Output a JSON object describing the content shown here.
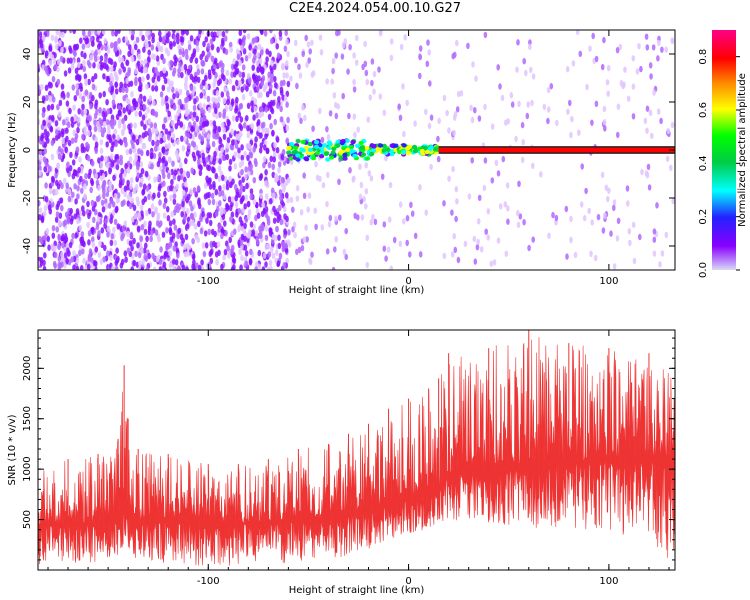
{
  "title": "C2E4.2024.054.00.10.G27",
  "colors": {
    "snr_fill": "#ee3333",
    "background": "#ffffff",
    "axis": "#000000"
  },
  "chart_data": [
    {
      "type": "heatmap",
      "xlabel": "Height of straight line (km)",
      "ylabel": "Frequency (Hz)",
      "xlim": [
        -185,
        133
      ],
      "ylim": [
        -50,
        50
      ],
      "x_ticks": [
        "-100",
        "0",
        "100"
      ],
      "x_tick_values": [
        -100,
        0,
        100
      ],
      "y_ticks": [
        "40",
        "20",
        "0",
        "-20",
        "-40"
      ],
      "y_tick_values": [
        40,
        20,
        0,
        -20,
        -40
      ],
      "colorbar": {
        "label": "Normalized spectral amplitude",
        "range": [
          0,
          0.9
        ],
        "ticks": [
          "0.0",
          "0.2",
          "0.4",
          "0.6",
          "0.8"
        ],
        "tick_values": [
          0.0,
          0.2,
          0.4,
          0.6,
          0.8
        ],
        "colormap": "rainbow (purple-blue-cyan-green-yellow-orange-red-magenta)"
      },
      "features": [
        {
          "description": "dense purple noise speckle",
          "x_range": [
            -185,
            -60
          ],
          "y_range": [
            -50,
            50
          ],
          "amplitude_range": [
            0.0,
            0.1
          ]
        },
        {
          "description": "sparse purple noise speckle",
          "x_range": [
            -60,
            133
          ],
          "y_range": [
            -50,
            50
          ],
          "amplitude_range": [
            0.0,
            0.05
          ]
        },
        {
          "description": "carrier tone near 0 Hz onset",
          "x_range": [
            -60,
            15
          ],
          "y_range": [
            -4,
            4
          ],
          "amplitude_range": [
            0.1,
            0.6
          ]
        },
        {
          "description": "steady carrier tone at 0 Hz",
          "x_range": [
            15,
            133
          ],
          "y_range": [
            -1,
            1
          ],
          "amplitude_range": [
            0.75,
            0.9
          ]
        }
      ]
    },
    {
      "type": "area",
      "xlabel": "Height of straight line (km)",
      "ylabel": "SNR (10 * v/v)",
      "xlim": [
        -185,
        133
      ],
      "ylim": [
        0,
        2380
      ],
      "x_ticks": [
        "-100",
        "0",
        "100"
      ],
      "x_tick_values": [
        -100,
        0,
        100
      ],
      "y_ticks": [
        "2000",
        "1500",
        "1000",
        "500"
      ],
      "y_tick_values": [
        2000,
        1500,
        1000,
        500
      ],
      "series": [
        {
          "color": "#ee3333",
          "x": [
            -185,
            -170,
            -155,
            -145,
            -142,
            -140,
            -135,
            -120,
            -100,
            -85,
            -70,
            -55,
            -40,
            -30,
            -20,
            -10,
            0,
            10,
            15,
            20,
            40,
            60,
            80,
            100,
            120,
            133
          ],
          "median": [
            450,
            450,
            460,
            480,
            600,
            520,
            470,
            500,
            470,
            460,
            470,
            500,
            520,
            560,
            600,
            640,
            700,
            760,
            820,
            950,
            1000,
            1050,
            1080,
            1080,
            1100,
            1100
          ],
          "upper": [
            1000,
            1100,
            1150,
            1300,
            2030,
            1500,
            1200,
            1150,
            1050,
            1050,
            1100,
            1200,
            1250,
            1350,
            1450,
            1600,
            1700,
            1800,
            1900,
            2150,
            2200,
            2380,
            2250,
            2200,
            2150,
            1900
          ],
          "lower": [
            50,
            60,
            80,
            120,
            250,
            160,
            100,
            60,
            40,
            40,
            50,
            80,
            100,
            140,
            200,
            300,
            350,
            400,
            450,
            500,
            450,
            400,
            400,
            350,
            300,
            50
          ]
        }
      ]
    }
  ]
}
